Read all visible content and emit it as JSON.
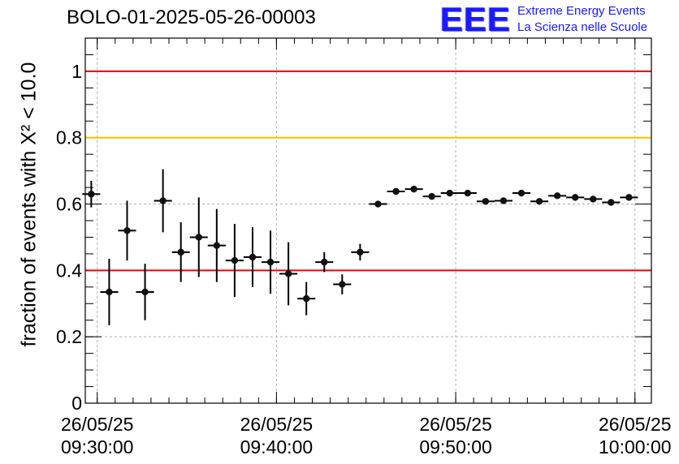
{
  "run_title": "BOLO-01-2025-05-26-00003",
  "logo": {
    "mark": "EEE",
    "line1": "Extreme Energy Events",
    "line2": "La Scienza nelle Scuole"
  },
  "chart_data": {
    "type": "scatter",
    "title": "BOLO-01-2025-05-26-00003",
    "ylabel": "fraction of events with X² < 10.0",
    "xlabel": "",
    "ylim": [
      0,
      1.1
    ],
    "xlim": [
      "26/05/25 09:29:20",
      "26/05/25 10:00:55"
    ],
    "grid": true,
    "x_ticks": [
      {
        "date": "26/05/25",
        "time": "09:30:00"
      },
      {
        "date": "26/05/25",
        "time": "09:40:00"
      },
      {
        "date": "26/05/25",
        "time": "09:50:00"
      },
      {
        "date": "26/05/25",
        "time": "10:00:00"
      }
    ],
    "y_ticks": [
      "0",
      "0.2",
      "0.4",
      "0.6",
      "0.8",
      "1"
    ],
    "reference_lines": [
      {
        "y": 1.0,
        "color": "#e8000b"
      },
      {
        "y": 0.8,
        "color": "#ffc000"
      },
      {
        "y": 0.4,
        "color": "#e8000b"
      }
    ],
    "points": [
      {
        "x": "09:29:40",
        "y": 0.63,
        "err": 0.04
      },
      {
        "x": "09:30:40",
        "y": 0.335,
        "err": 0.1
      },
      {
        "x": "09:31:40",
        "y": 0.52,
        "err": 0.09
      },
      {
        "x": "09:32:40",
        "y": 0.335,
        "err": 0.085
      },
      {
        "x": "09:33:40",
        "y": 0.61,
        "err": 0.095
      },
      {
        "x": "09:34:40",
        "y": 0.455,
        "err": 0.09
      },
      {
        "x": "09:35:40",
        "y": 0.5,
        "err": 0.12
      },
      {
        "x": "09:36:40",
        "y": 0.475,
        "err": 0.11
      },
      {
        "x": "09:37:40",
        "y": 0.43,
        "err": 0.11
      },
      {
        "x": "09:38:40",
        "y": 0.44,
        "err": 0.09
      },
      {
        "x": "09:39:40",
        "y": 0.425,
        "err": 0.095
      },
      {
        "x": "09:40:40",
        "y": 0.39,
        "err": 0.095
      },
      {
        "x": "09:41:40",
        "y": 0.315,
        "err": 0.05
      },
      {
        "x": "09:42:40",
        "y": 0.425,
        "err": 0.03
      },
      {
        "x": "09:43:40",
        "y": 0.358,
        "err": 0.03
      },
      {
        "x": "09:44:40",
        "y": 0.455,
        "err": 0.025
      },
      {
        "x": "09:45:40",
        "y": 0.6,
        "err": 0.006
      },
      {
        "x": "09:46:40",
        "y": 0.638,
        "err": 0.006
      },
      {
        "x": "09:47:40",
        "y": 0.645,
        "err": 0.006
      },
      {
        "x": "09:48:40",
        "y": 0.623,
        "err": 0.006
      },
      {
        "x": "09:49:40",
        "y": 0.633,
        "err": 0.006
      },
      {
        "x": "09:50:40",
        "y": 0.633,
        "err": 0.006
      },
      {
        "x": "09:51:40",
        "y": 0.608,
        "err": 0.006
      },
      {
        "x": "09:52:40",
        "y": 0.61,
        "err": 0.006
      },
      {
        "x": "09:53:40",
        "y": 0.633,
        "err": 0.006
      },
      {
        "x": "09:54:40",
        "y": 0.608,
        "err": 0.006
      },
      {
        "x": "09:55:40",
        "y": 0.625,
        "err": 0.006
      },
      {
        "x": "09:56:40",
        "y": 0.62,
        "err": 0.006
      },
      {
        "x": "09:57:40",
        "y": 0.615,
        "err": 0.006
      },
      {
        "x": "09:58:40",
        "y": 0.605,
        "err": 0.006
      },
      {
        "x": "09:59:40",
        "y": 0.62,
        "err": 0.006
      }
    ],
    "bin_half_width_seconds": 30
  }
}
